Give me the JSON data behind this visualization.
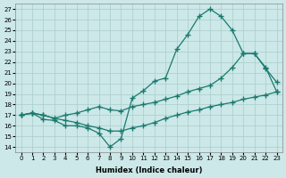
{
  "xlabel": "Humidex (Indice chaleur)",
  "ylabel": "",
  "xlim": [
    -0.5,
    23.5
  ],
  "ylim": [
    13.5,
    27.5
  ],
  "xticks": [
    0,
    1,
    2,
    3,
    4,
    5,
    6,
    7,
    8,
    9,
    10,
    11,
    12,
    13,
    14,
    15,
    16,
    17,
    18,
    19,
    20,
    21,
    22,
    23
  ],
  "yticks": [
    14,
    15,
    16,
    17,
    18,
    19,
    20,
    21,
    22,
    23,
    24,
    25,
    26,
    27
  ],
  "bg_color": "#cce8e8",
  "line_color": "#1a7a6e",
  "grid_color": "#aacccc",
  "line1_x": [
    0,
    1,
    2,
    3,
    4,
    5,
    6,
    7,
    8,
    9,
    10,
    11,
    12,
    13,
    14,
    15,
    16,
    17,
    18,
    19,
    20,
    21,
    22,
    23
  ],
  "line1_y": [
    17.0,
    17.2,
    16.6,
    16.5,
    16.0,
    16.0,
    15.8,
    15.3,
    14.0,
    14.8,
    18.6,
    19.3,
    20.2,
    20.5,
    23.2,
    24.6,
    26.3,
    27.0,
    26.3,
    25.0,
    22.8,
    22.8,
    21.4,
    20.1
  ],
  "line2_x": [
    0,
    1,
    2,
    3,
    4,
    5,
    6,
    7,
    8,
    9,
    10,
    11,
    12,
    13,
    14,
    15,
    16,
    17,
    18,
    19,
    20,
    21,
    22,
    23
  ],
  "line2_y": [
    17.0,
    17.2,
    17.0,
    16.7,
    17.0,
    17.2,
    17.5,
    17.8,
    17.5,
    17.4,
    17.8,
    18.0,
    18.2,
    18.5,
    18.8,
    19.2,
    19.5,
    19.8,
    20.5,
    21.5,
    22.8,
    22.8,
    21.5,
    19.2
  ],
  "line3_x": [
    0,
    1,
    2,
    3,
    4,
    5,
    6,
    7,
    8,
    9,
    10,
    11,
    12,
    13,
    14,
    15,
    16,
    17,
    18,
    19,
    20,
    21,
    22,
    23
  ],
  "line3_y": [
    17.0,
    17.2,
    17.0,
    16.7,
    16.5,
    16.3,
    16.0,
    15.8,
    15.5,
    15.5,
    15.8,
    16.0,
    16.3,
    16.7,
    17.0,
    17.3,
    17.5,
    17.8,
    18.0,
    18.2,
    18.5,
    18.7,
    18.9,
    19.2
  ]
}
